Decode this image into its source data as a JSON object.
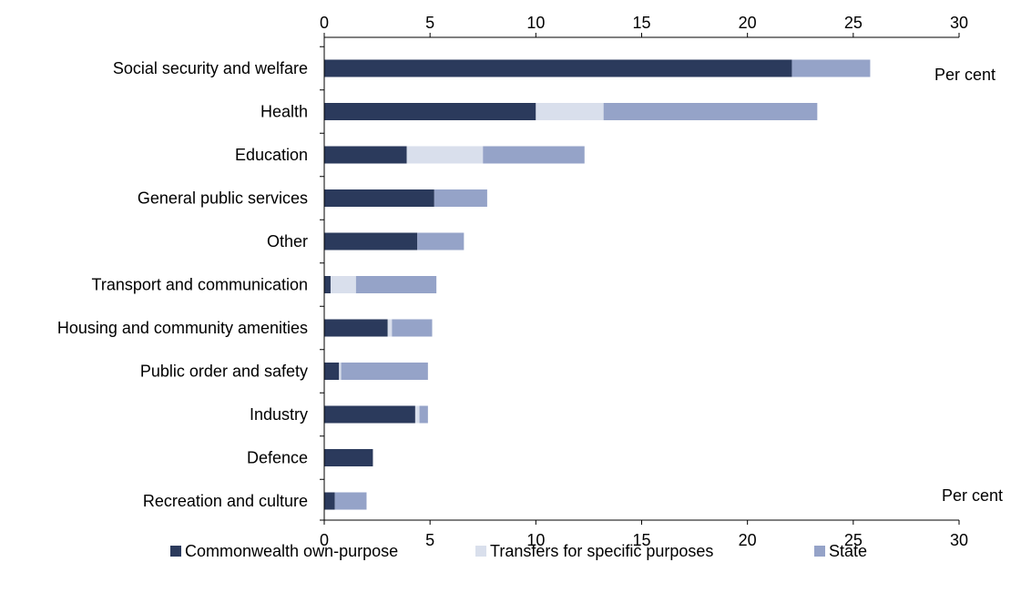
{
  "chart_data": {
    "type": "bar",
    "orientation": "horizontal",
    "stacked": true,
    "categories": [
      "Social security and welfare",
      "Health",
      "Education",
      "General public services",
      "Other",
      "Transport and communication",
      "Housing and community amenities",
      "Public order and safety",
      "Industry",
      "Defence",
      "Recreation and culture"
    ],
    "series": [
      {
        "name": "Commonwealth own-purpose",
        "color": "#2b3a5c",
        "values": [
          22.1,
          10.0,
          3.9,
          5.2,
          4.4,
          0.3,
          3.0,
          0.7,
          4.3,
          2.3,
          0.5
        ]
      },
      {
        "name": "Transfers for specific purposes",
        "color": "#d9dfec",
        "values": [
          0.0,
          3.2,
          3.6,
          0.0,
          0.0,
          1.2,
          0.2,
          0.1,
          0.2,
          0.0,
          0.0
        ]
      },
      {
        "name": "State",
        "color": "#95a3c8",
        "values": [
          3.7,
          10.1,
          4.8,
          2.5,
          2.2,
          3.8,
          1.9,
          4.1,
          0.4,
          0.0,
          1.5
        ]
      }
    ],
    "xlim": [
      0,
      30
    ],
    "x_ticks": [
      "0",
      "5",
      "10",
      "15",
      "20",
      "25",
      "30"
    ],
    "x_axis_positions": [
      "top",
      "bottom"
    ],
    "xlabel_top": "Per cent",
    "xlabel_bottom": "Per cent",
    "grid": false,
    "legend_position": "bottom"
  }
}
